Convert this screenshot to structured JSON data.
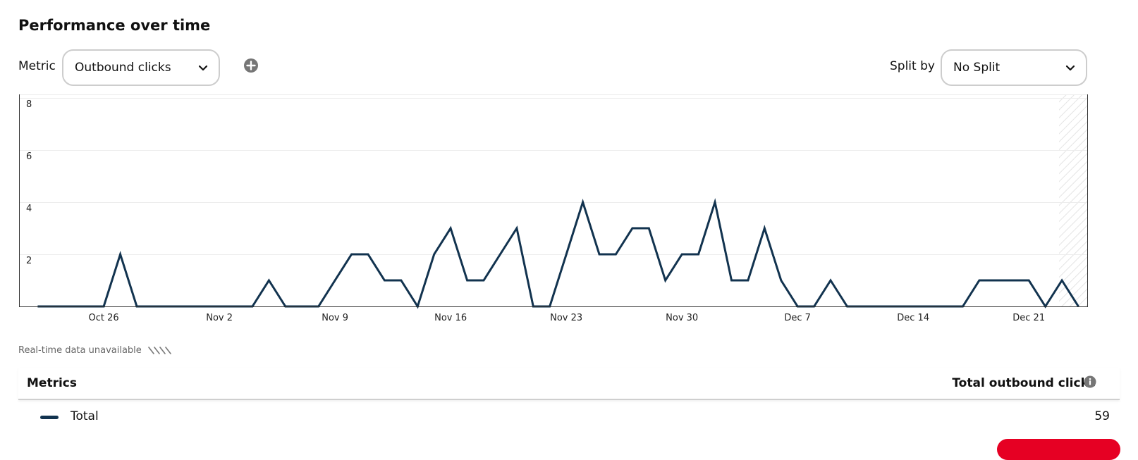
{
  "header": {
    "title": "Performance over time"
  },
  "controls": {
    "metric_label": "Metric",
    "metric_value": "Outbound clicks",
    "split_label": "Split by",
    "split_value": "No Split"
  },
  "realtime": {
    "label": "Real-time data unavailable"
  },
  "table": {
    "col_metrics": "Metrics",
    "col_total": "Total outbound clicks",
    "rows": [
      {
        "label": "Total",
        "value": "59"
      }
    ]
  },
  "colors": {
    "series": "#12334f",
    "accent": "#e60023"
  },
  "chart_data": {
    "type": "line",
    "y_ticks": [
      "2",
      "4",
      "6",
      "8"
    ],
    "ylim": [
      0,
      8
    ],
    "x_tick_labels": [
      "Oct 26",
      "Nov 2",
      "Nov 9",
      "Nov 16",
      "Nov 23",
      "Nov 30",
      "Dec 7",
      "Dec 14",
      "Dec 21"
    ],
    "x_tick_index": [
      4,
      11,
      18,
      25,
      32,
      39,
      46,
      53,
      60
    ],
    "series": [
      {
        "values": [
          0,
          0,
          0,
          0,
          0,
          2,
          0,
          0,
          0,
          0,
          0,
          0,
          0,
          0,
          1,
          0,
          0,
          0,
          1,
          2,
          2,
          1,
          1,
          0,
          2,
          3,
          1,
          1,
          2,
          3,
          0,
          0,
          2,
          4,
          2,
          2,
          3,
          3,
          1,
          2,
          2,
          4,
          1,
          1,
          3,
          1,
          0,
          0,
          1,
          0,
          0,
          0,
          0,
          0,
          0,
          0,
          0,
          1,
          1,
          1,
          1,
          0,
          1,
          0
        ]
      }
    ],
    "grid": true
  }
}
